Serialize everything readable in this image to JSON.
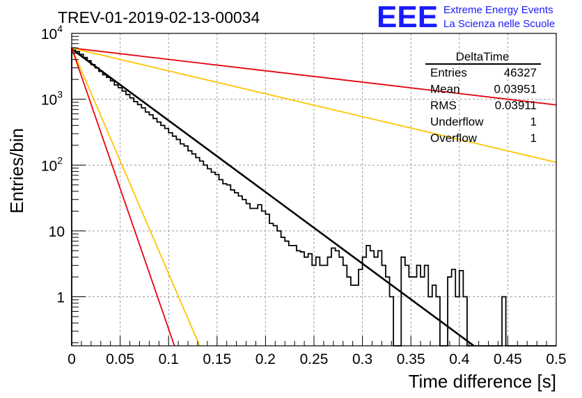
{
  "chart_data": {
    "type": "bar",
    "title": "TREV-01-2019-02-13-00034",
    "xlabel": "Time difference [s]",
    "ylabel": "Entries/bin",
    "xlim": [
      0,
      0.5
    ],
    "ylim": [
      0.18,
      10000
    ],
    "y_scale": "log",
    "grid": true,
    "x_ticks": [
      "0",
      "0.05",
      "0.1",
      "0.15",
      "0.2",
      "0.25",
      "0.3",
      "0.35",
      "0.4",
      "0.45",
      "0.5"
    ],
    "y_ticks": [
      {
        "value": 1,
        "label": "1"
      },
      {
        "value": 10,
        "label": "10"
      },
      {
        "value": 100,
        "base": "10",
        "exp": "2"
      },
      {
        "value": 1000,
        "base": "10",
        "exp": "3"
      },
      {
        "value": 10000,
        "base": "10",
        "exp": "4"
      }
    ],
    "histogram": {
      "name": "DeltaTime",
      "bin_width": 0.004,
      "x_start": 0,
      "values": [
        6000,
        5300,
        4800,
        4300,
        3850,
        3350,
        3000,
        2650,
        2350,
        2150,
        1900,
        1650,
        1500,
        1330,
        1180,
        1050,
        920,
        830,
        740,
        640,
        580,
        510,
        450,
        400,
        360,
        310,
        275,
        245,
        210,
        195,
        165,
        148,
        130,
        115,
        100,
        88,
        78,
        72,
        60,
        52,
        50,
        42,
        38,
        34,
        30,
        26,
        22,
        22,
        25,
        20,
        18,
        13,
        12,
        10,
        8,
        7,
        6,
        6,
        5,
        4.8,
        4,
        4.5,
        3,
        4,
        3,
        3,
        4,
        5.5,
        5,
        4,
        3,
        2,
        1.5,
        1.5,
        2.6,
        4,
        6,
        5,
        4,
        5,
        3,
        2,
        1,
        0,
        0,
        4,
        3,
        2,
        2,
        3,
        2,
        3,
        1,
        1.5,
        1,
        0,
        0,
        2,
        2.6,
        1,
        2.5,
        1,
        0,
        0,
        0,
        0,
        0,
        0,
        0,
        0,
        0,
        1,
        0,
        0,
        0,
        0,
        0,
        0,
        0,
        0,
        0,
        0,
        0,
        0,
        0
      ]
    },
    "series": [
      {
        "kind": "fit",
        "color": "#000000",
        "x": [
          0,
          0.415
        ],
        "y": [
          5800,
          0.18
        ]
      },
      {
        "kind": "guide",
        "color": "#e8000b",
        "x": [
          0,
          0.5
        ],
        "y": [
          6000,
          820
        ]
      },
      {
        "kind": "guide",
        "color": "#ffc400",
        "x": [
          0,
          0.5
        ],
        "y": [
          6000,
          110
        ]
      },
      {
        "kind": "guide",
        "color": "#ffc400",
        "x": [
          0,
          0.132
        ],
        "y": [
          6000,
          0.18
        ]
      },
      {
        "kind": "guide",
        "color": "#e8000b",
        "x": [
          0,
          0.106
        ],
        "y": [
          6000,
          0.18
        ]
      }
    ],
    "stats": {
      "title": "DeltaTime",
      "rows": [
        {
          "label": "Entries",
          "value": "46327"
        },
        {
          "label": "Mean",
          "value": "0.03951"
        },
        {
          "label": "RMS",
          "value": "0.03911"
        },
        {
          "label": "Underflow",
          "value": "1"
        },
        {
          "label": "Overflow",
          "value": "1"
        }
      ]
    }
  },
  "logo": {
    "mark": "EEE",
    "line1": "Extreme Energy Events",
    "line2": "La Scienza nelle Scuole"
  }
}
